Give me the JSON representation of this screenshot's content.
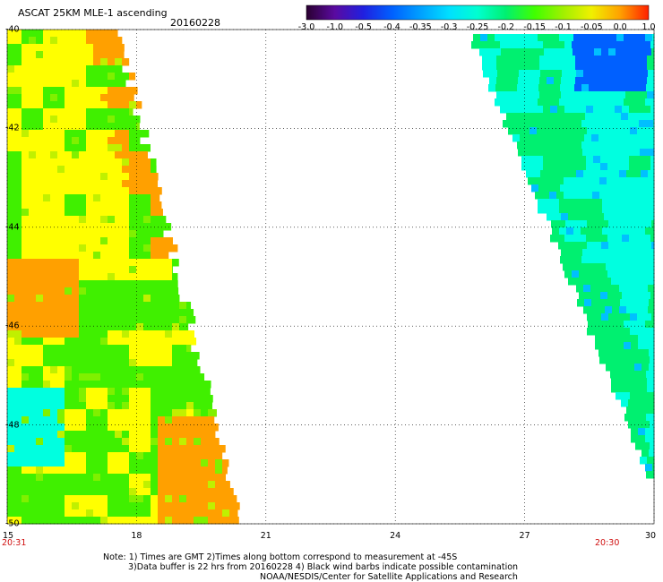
{
  "header": {
    "title": "ASCAT 25KM MLE-1 ascending",
    "date": "20160228"
  },
  "colorbar": {
    "labels": [
      "-3.0",
      "-1.0",
      "-0.5",
      "-0.4",
      "-0.35",
      "-0.3",
      "-0.25",
      "-0.2",
      "-0.15",
      "-0.1",
      "-0.05",
      "0.0",
      "1.0"
    ],
    "stops": [
      "#2a0030",
      "#5a0aa0",
      "#2020e0",
      "#0060ff",
      "#00a0ff",
      "#00e0ff",
      "#00ffd0",
      "#00f070",
      "#40ff00",
      "#a0f000",
      "#f0f000",
      "#ffa000",
      "#ff2000"
    ]
  },
  "map": {
    "lon_range": [
      15,
      30
    ],
    "lat_range": [
      -50,
      -40
    ],
    "lon_ticks": [
      "15",
      "18",
      "21",
      "24",
      "27",
      "30"
    ],
    "lat_ticks": [
      "-40",
      "-42",
      "-44",
      "-46",
      "-48",
      "-50"
    ],
    "grid": true,
    "swaths": [
      {
        "name": "west",
        "pass_time": "20:31",
        "dominant_colors": [
          "#ffff00",
          "#ffa000",
          "#40f000",
          "#00ffe0"
        ]
      },
      {
        "name": "east",
        "pass_time": "20:30",
        "dominant_colors": [
          "#00ffe0",
          "#00f070",
          "#0060ff"
        ]
      }
    ]
  },
  "notes": {
    "line1": "Note: 1) Times are GMT 2)Times along bottom correspond to measurement at -45S",
    "line2": "3)Data buffer is 22 hrs from 20160228 4) Black wind barbs indicate possible contamination",
    "line3": "NOAA/NESDIS/Center for Satellite Applications and Research"
  }
}
